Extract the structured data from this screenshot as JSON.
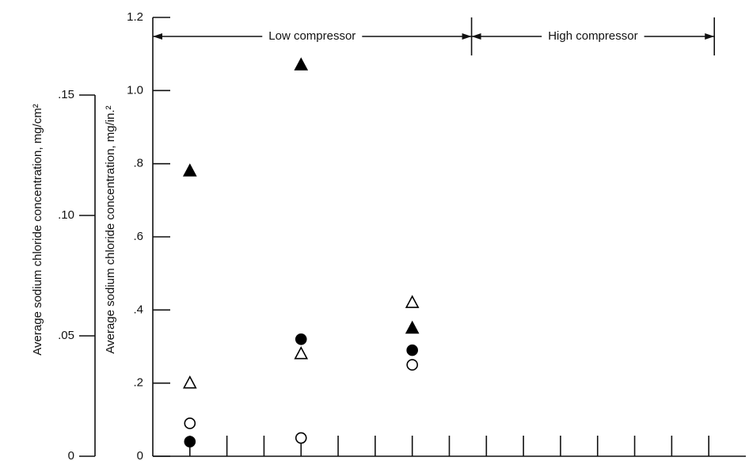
{
  "chart_data": {
    "type": "scatter",
    "y_label": "Average sodium chloride concentration,  mg/in.²",
    "y2_label": "Average sodium chloride concentration,  mg/cm²",
    "xlim": [
      0,
      16
    ],
    "xticks": [
      1,
      2,
      3,
      4,
      5,
      6,
      7,
      8,
      9,
      10,
      11,
      12,
      13,
      14,
      15
    ],
    "ylim": [
      0,
      1.2
    ],
    "yticks": [
      0,
      {
        "value": 0.2,
        "label": ".2"
      },
      {
        "value": 0.4,
        "label": ".4"
      },
      {
        "value": 0.6,
        "label": ".6"
      },
      {
        "value": 0.8,
        "label": ".8"
      },
      {
        "value": 1.0,
        "label": "1.0"
      },
      {
        "value": 1.2,
        "label": "1.2"
      }
    ],
    "y2lim": [
      0,
      0.15
    ],
    "y2ticks": [
      0,
      {
        "value": 0.05,
        "label": ".05"
      },
      {
        "value": 0.1,
        "label": ".10"
      },
      {
        "value": 0.15,
        "label": ".15"
      }
    ],
    "regions": [
      {
        "label": "Low compressor",
        "x": [
          0,
          8.6
        ]
      },
      {
        "label": "High compressor",
        "x": [
          8.6,
          15.15
        ]
      }
    ],
    "series": [
      {
        "marker": "triangle",
        "filled": true,
        "color": "#000000",
        "x": [
          1,
          4,
          7
        ],
        "values": [
          0.78,
          1.07,
          0.35
        ]
      },
      {
        "marker": "triangle",
        "filled": false,
        "color": "#000000",
        "x": [
          1,
          4,
          7
        ],
        "values": [
          0.2,
          0.28,
          0.42
        ]
      },
      {
        "marker": "circle",
        "filled": true,
        "color": "#000000",
        "x": [
          1,
          4,
          7
        ],
        "values": [
          0.04,
          0.32,
          0.29
        ]
      },
      {
        "marker": "circle",
        "filled": false,
        "color": "#000000",
        "x": [
          1,
          4,
          7
        ],
        "values": [
          0.09,
          0.05,
          0.25
        ]
      }
    ]
  }
}
